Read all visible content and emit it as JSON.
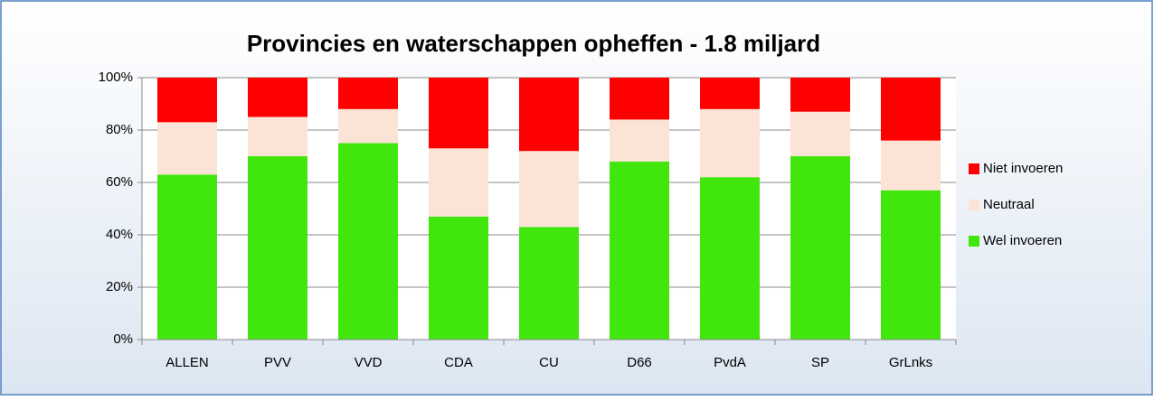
{
  "chart_data": {
    "type": "stacked_bar",
    "title": "Provincies en waterschappen opheffen - 1.8 miljard",
    "categories": [
      "ALLEN",
      "PVV",
      "VVD",
      "CDA",
      "CU",
      "D66",
      "PvdA",
      "SP",
      "GrLnks"
    ],
    "series": [
      {
        "name": "Wel invoeren",
        "color": "#40e60c",
        "values": [
          63,
          70,
          75,
          47,
          43,
          68,
          62,
          70,
          57
        ]
      },
      {
        "name": "Neutraal",
        "color": "#fbe4d6",
        "values": [
          20,
          15,
          13,
          26,
          29,
          16,
          26,
          17,
          19
        ]
      },
      {
        "name": "Niet invoeren",
        "color": "#ff0000",
        "values": [
          17,
          15,
          12,
          27,
          28,
          16,
          12,
          13,
          24
        ]
      }
    ],
    "ylim": [
      0,
      100
    ],
    "yticks": [
      {
        "value": 0,
        "label": "0%"
      },
      {
        "value": 20,
        "label": "20%"
      },
      {
        "value": 40,
        "label": "40%"
      },
      {
        "value": 60,
        "label": "60%"
      },
      {
        "value": 80,
        "label": "80%"
      },
      {
        "value": 100,
        "label": "100%"
      }
    ],
    "grid": true,
    "legend": "right"
  }
}
